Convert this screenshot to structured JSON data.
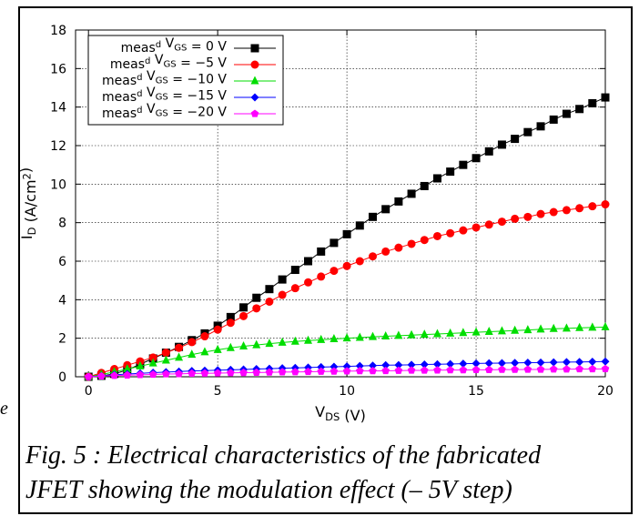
{
  "caption": {
    "line1": "Fig. 5 : Electrical characteristics of the fabricated",
    "line2": "JFET showing the modulation effect (– 5V step)"
  },
  "margin_mark": "e",
  "chart_data": {
    "type": "line",
    "xlabel": "V_DS (V)",
    "ylabel": "I_D (A/cm^2)",
    "xlim": [
      -0.5,
      20
    ],
    "ylim": [
      0,
      18
    ],
    "xticks": [
      0,
      5,
      10,
      15,
      20
    ],
    "yticks": [
      0,
      2,
      4,
      6,
      8,
      10,
      12,
      14,
      16,
      18
    ],
    "grid": true,
    "legend_position": "top-left",
    "x": [
      0,
      0.5,
      1,
      1.5,
      2,
      2.5,
      3,
      3.5,
      4,
      4.5,
      5,
      5.5,
      6,
      6.5,
      7,
      7.5,
      8,
      8.5,
      9,
      9.5,
      10,
      10.5,
      11,
      11.5,
      12,
      12.5,
      13,
      13.5,
      14,
      14.5,
      15,
      15.5,
      16,
      16.5,
      17,
      17.5,
      18,
      18.5,
      19,
      19.5,
      20
    ],
    "series": [
      {
        "name": "meas^d V_GS = 0 V",
        "color": "#000000",
        "marker": "square",
        "values": [
          0,
          0.05,
          0.15,
          0.35,
          0.65,
          0.95,
          1.25,
          1.55,
          1.9,
          2.25,
          2.65,
          3.1,
          3.6,
          4.1,
          4.55,
          5.05,
          5.55,
          6.0,
          6.5,
          6.95,
          7.4,
          7.85,
          8.3,
          8.7,
          9.1,
          9.5,
          9.9,
          10.3,
          10.65,
          11.0,
          11.35,
          11.7,
          12.05,
          12.35,
          12.7,
          13.0,
          13.35,
          13.65,
          13.9,
          14.2,
          14.5
        ]
      },
      {
        "name": "meas^d V_GS = −5 V",
        "color": "#ff0000",
        "marker": "circle",
        "values": [
          0,
          0.2,
          0.4,
          0.6,
          0.8,
          1.0,
          1.25,
          1.5,
          1.8,
          2.1,
          2.45,
          2.8,
          3.15,
          3.55,
          3.9,
          4.25,
          4.6,
          4.9,
          5.2,
          5.5,
          5.75,
          6.0,
          6.25,
          6.5,
          6.7,
          6.9,
          7.1,
          7.3,
          7.45,
          7.6,
          7.75,
          7.9,
          8.05,
          8.2,
          8.3,
          8.45,
          8.55,
          8.65,
          8.75,
          8.85,
          8.95
        ]
      },
      {
        "name": "meas^d V_GS = −10 V",
        "color": "#00dd00",
        "marker": "triangle",
        "values": [
          0,
          0.12,
          0.25,
          0.4,
          0.55,
          0.7,
          0.85,
          1.0,
          1.15,
          1.28,
          1.4,
          1.5,
          1.58,
          1.65,
          1.72,
          1.78,
          1.83,
          1.88,
          1.92,
          1.96,
          2.0,
          2.03,
          2.07,
          2.1,
          2.13,
          2.16,
          2.19,
          2.22,
          2.25,
          2.28,
          2.31,
          2.34,
          2.37,
          2.4,
          2.43,
          2.46,
          2.49,
          2.51,
          2.54,
          2.56,
          2.58
        ]
      },
      {
        "name": "meas^d V_GS = −15 V",
        "color": "#0000ff",
        "marker": "diamond",
        "values": [
          0,
          0.05,
          0.1,
          0.14,
          0.18,
          0.21,
          0.24,
          0.27,
          0.3,
          0.32,
          0.34,
          0.36,
          0.38,
          0.4,
          0.42,
          0.44,
          0.46,
          0.48,
          0.5,
          0.52,
          0.54,
          0.56,
          0.58,
          0.6,
          0.61,
          0.62,
          0.64,
          0.65,
          0.66,
          0.68,
          0.69,
          0.7,
          0.71,
          0.72,
          0.73,
          0.74,
          0.75,
          0.76,
          0.77,
          0.78,
          0.79
        ]
      },
      {
        "name": "meas^d V_GS = −20 V",
        "color": "#ff00ff",
        "marker": "pentagon",
        "values": [
          0,
          0.03,
          0.06,
          0.08,
          0.1,
          0.12,
          0.14,
          0.15,
          0.17,
          0.18,
          0.19,
          0.2,
          0.21,
          0.22,
          0.23,
          0.24,
          0.25,
          0.26,
          0.27,
          0.28,
          0.29,
          0.3,
          0.3,
          0.31,
          0.32,
          0.33,
          0.33,
          0.34,
          0.35,
          0.35,
          0.36,
          0.36,
          0.37,
          0.37,
          0.38,
          0.38,
          0.39,
          0.39,
          0.4,
          0.4,
          0.41
        ]
      }
    ]
  }
}
